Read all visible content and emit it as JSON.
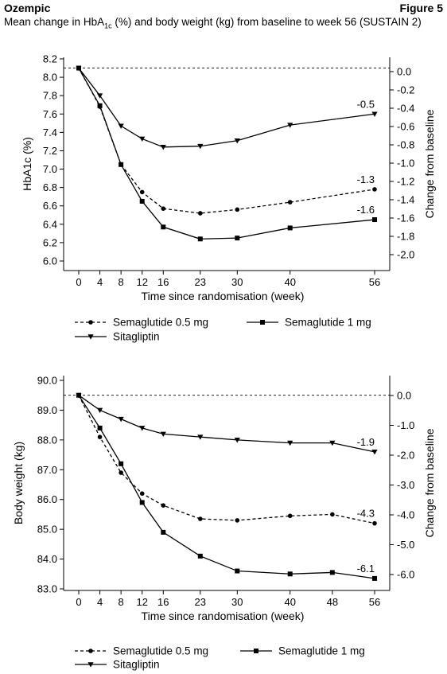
{
  "header": {
    "drug_name": "Ozempic",
    "figure_label": "Figure 5",
    "subtitle_pre": "Mean change in HbA",
    "subtitle_sub": "1c",
    "subtitle_post": " (%) and body weight (kg) from baseline to week 56 (SUSTAIN 2)"
  },
  "chart_data": [
    {
      "type": "line",
      "ylabel_left": "HbA1c (%)",
      "ylabel_right": "Change from baseline",
      "xlabel": "Time since randomisation (week)",
      "x": [
        0,
        4,
        8,
        12,
        16,
        23,
        30,
        40,
        56
      ],
      "x_ticks": [
        "0",
        "4",
        "8",
        "12",
        "16",
        "23",
        "30",
        "40",
        "56"
      ],
      "y_ticks_left": [
        "8.2",
        "8.0",
        "7.8",
        "7.6",
        "7.4",
        "7.2",
        "7.0",
        "6.8",
        "6.6",
        "6.4",
        "6.2",
        "6.0"
      ],
      "y_ticks_right": [
        "0.0",
        "-0.2",
        "-0.4",
        "-0.6",
        "-0.8",
        "-1.0",
        "-1.2",
        "-1.4",
        "-1.6",
        "-1.8",
        "-2.0"
      ],
      "ylim": [
        6.0,
        8.2
      ],
      "baseline": 8.1,
      "series": [
        {
          "name": "Semaglutide 0.5 mg",
          "marker": "circle",
          "dash": "dashed",
          "values": [
            8.1,
            7.68,
            7.05,
            6.75,
            6.57,
            6.52,
            6.56,
            6.64,
            6.78
          ],
          "end_label": "-1.3"
        },
        {
          "name": "Semaglutide 1 mg",
          "marker": "square",
          "dash": "solid",
          "values": [
            8.1,
            7.69,
            7.05,
            6.65,
            6.37,
            6.24,
            6.25,
            6.36,
            6.45
          ],
          "end_label": "-1.6"
        },
        {
          "name": "Sitagliptin",
          "marker": "triangle",
          "dash": "solid",
          "values": [
            8.1,
            7.8,
            7.47,
            7.33,
            7.24,
            7.25,
            7.31,
            7.48,
            7.6
          ],
          "end_label": "-0.5"
        }
      ],
      "legend": [
        {
          "label": "Semaglutide 0.5 mg",
          "marker": "circle",
          "dash": "dashed"
        },
        {
          "label": "Semaglutide 1 mg",
          "marker": "square",
          "dash": "solid"
        },
        {
          "label": "Sitagliptin",
          "marker": "triangle",
          "dash": "solid"
        }
      ]
    },
    {
      "type": "line",
      "ylabel_left": "Body weight (kg)",
      "ylabel_right": "Change from baseline",
      "xlabel": "Time since randomisation (week)",
      "x": [
        0,
        4,
        8,
        12,
        16,
        23,
        30,
        40,
        48,
        56
      ],
      "x_ticks": [
        "0",
        "4",
        "8",
        "12",
        "16",
        "23",
        "30",
        "40",
        "48",
        "56"
      ],
      "y_ticks_left": [
        "90.0",
        "89.0",
        "88.0",
        "87.0",
        "86.0",
        "85.0",
        "84.0",
        "83.0"
      ],
      "y_ticks_right": [
        "0.0",
        "-1.0",
        "-2.0",
        "-3.0",
        "-4.0",
        "-5.0",
        "-6.0"
      ],
      "ylim": [
        83.0,
        90.0
      ],
      "baseline": 89.5,
      "series": [
        {
          "name": "Semaglutide 0.5 mg",
          "marker": "circle",
          "dash": "dashed",
          "values": [
            89.5,
            88.1,
            86.9,
            86.2,
            85.8,
            85.35,
            85.3,
            85.45,
            85.5,
            85.2
          ],
          "end_label": "-4.3"
        },
        {
          "name": "Semaglutide 1 mg",
          "marker": "square",
          "dash": "solid",
          "values": [
            89.5,
            88.4,
            87.2,
            85.9,
            84.9,
            84.1,
            83.6,
            83.5,
            83.55,
            83.35
          ],
          "end_label": "-6.1"
        },
        {
          "name": "Sitagliptin",
          "marker": "triangle",
          "dash": "solid",
          "values": [
            89.5,
            89.0,
            88.7,
            88.4,
            88.2,
            88.1,
            88.0,
            87.9,
            87.9,
            87.6
          ],
          "end_label": "-1.9"
        }
      ],
      "legend": [
        {
          "label": "Semaglutide 0.5 mg",
          "marker": "circle",
          "dash": "dashed"
        },
        {
          "label": "Semaglutide 1 mg",
          "marker": "square",
          "dash": "solid"
        },
        {
          "label": "Sitagliptin",
          "marker": "triangle",
          "dash": "solid"
        }
      ]
    }
  ]
}
